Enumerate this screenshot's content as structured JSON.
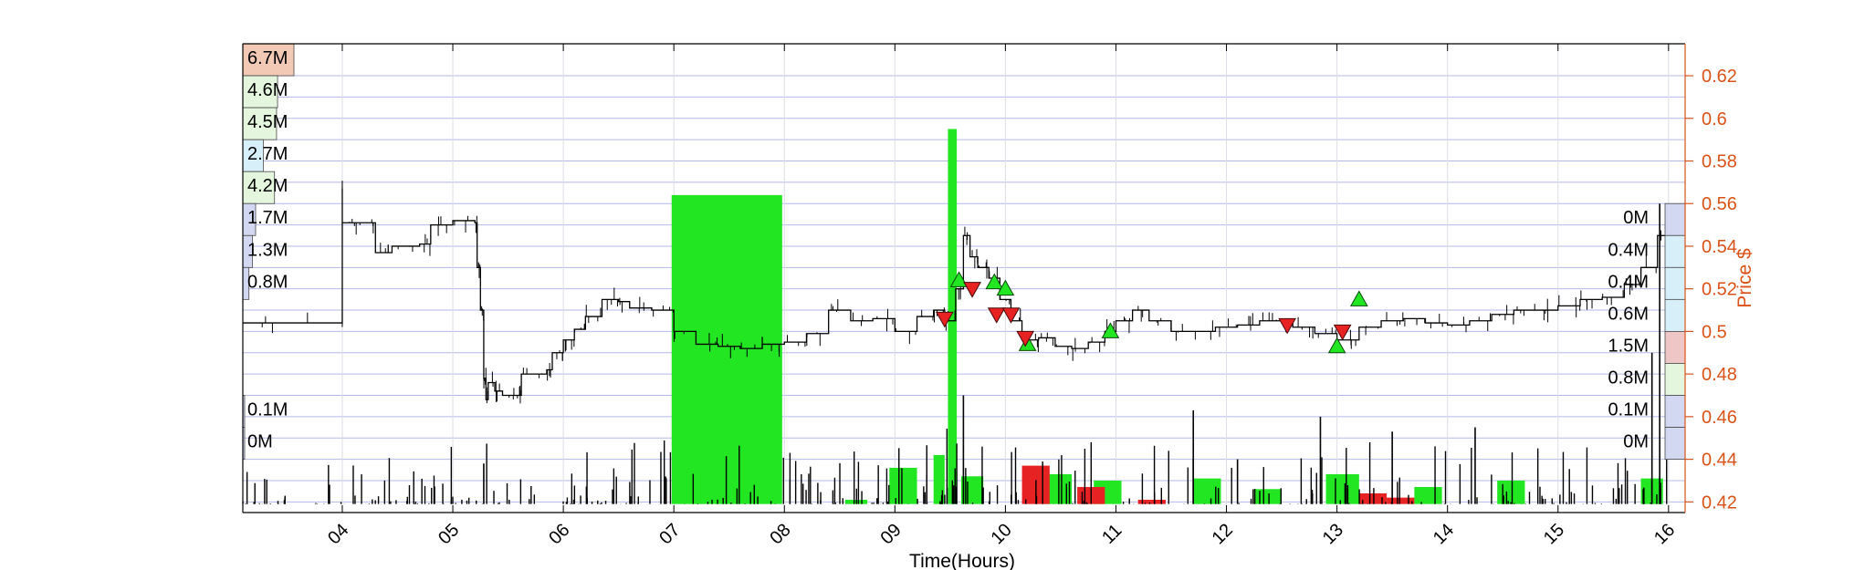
{
  "chart_data": {
    "type": "line",
    "xlabel": "Time(Hours)",
    "ylabel_right": "Price $",
    "x_range": [
      3.1,
      16.15
    ],
    "x_ticks": [
      "04",
      "05",
      "06",
      "07",
      "08",
      "09",
      "10",
      "11",
      "12",
      "13",
      "14",
      "15",
      "16"
    ],
    "x_tick_values": [
      4,
      5,
      6,
      7,
      8,
      9,
      10,
      11,
      12,
      13,
      14,
      15,
      16
    ],
    "ylim_right": [
      0.415,
      0.635
    ],
    "y_ticks_right": [
      0.42,
      0.44,
      0.46,
      0.48,
      0.5,
      0.52,
      0.54,
      0.56,
      0.58,
      0.6,
      0.62
    ],
    "y_tick_labels_right": [
      "0.42",
      "0.44",
      "0.46",
      "0.48",
      "0.5",
      "0.52",
      "0.54",
      "0.56",
      "0.58",
      "0.6",
      "0.62"
    ],
    "grid": true,
    "colors": {
      "price": "#000000",
      "buy": "#22e622",
      "sell": "#e62222",
      "axis_right": "#d95319",
      "grid": "#b4b8e6",
      "left_profile": "#dde8f7"
    },
    "price": [
      [
        3.1,
        0.504
      ],
      [
        4.0,
        0.504
      ],
      [
        4.0,
        0.567
      ],
      [
        4.0,
        0.551
      ],
      [
        4.15,
        0.551
      ],
      [
        4.3,
        0.537
      ],
      [
        4.45,
        0.54
      ],
      [
        4.7,
        0.541
      ],
      [
        4.8,
        0.55
      ],
      [
        5.0,
        0.552
      ],
      [
        5.2,
        0.551
      ],
      [
        5.22,
        0.53
      ],
      [
        5.25,
        0.51
      ],
      [
        5.28,
        0.478
      ],
      [
        5.3,
        0.468
      ],
      [
        5.32,
        0.476
      ],
      [
        5.38,
        0.472
      ],
      [
        5.45,
        0.47
      ],
      [
        5.6,
        0.47
      ],
      [
        5.62,
        0.48
      ],
      [
        5.85,
        0.482
      ],
      [
        5.9,
        0.49
      ],
      [
        6.0,
        0.496
      ],
      [
        6.1,
        0.501
      ],
      [
        6.2,
        0.507
      ],
      [
        6.35,
        0.515
      ],
      [
        6.5,
        0.514
      ],
      [
        6.6,
        0.511
      ],
      [
        6.8,
        0.51
      ],
      [
        7.0,
        0.5
      ],
      [
        7.2,
        0.494
      ],
      [
        7.4,
        0.493
      ],
      [
        7.6,
        0.492
      ],
      [
        7.8,
        0.494
      ],
      [
        8.0,
        0.495
      ],
      [
        8.2,
        0.499
      ],
      [
        8.4,
        0.51
      ],
      [
        8.6,
        0.505
      ],
      [
        8.8,
        0.506
      ],
      [
        9.0,
        0.5
      ],
      [
        9.2,
        0.507
      ],
      [
        9.35,
        0.51
      ],
      [
        9.45,
        0.505
      ],
      [
        9.55,
        0.52
      ],
      [
        9.62,
        0.545
      ],
      [
        9.68,
        0.535
      ],
      [
        9.75,
        0.53
      ],
      [
        9.85,
        0.525
      ],
      [
        9.95,
        0.515
      ],
      [
        10.05,
        0.505
      ],
      [
        10.15,
        0.496
      ],
      [
        10.3,
        0.497
      ],
      [
        10.45,
        0.493
      ],
      [
        10.6,
        0.492
      ],
      [
        10.75,
        0.495
      ],
      [
        10.9,
        0.5
      ],
      [
        11.0,
        0.505
      ],
      [
        11.15,
        0.51
      ],
      [
        11.3,
        0.505
      ],
      [
        11.5,
        0.5
      ],
      [
        11.7,
        0.5
      ],
      [
        11.9,
        0.502
      ],
      [
        12.1,
        0.503
      ],
      [
        12.3,
        0.505
      ],
      [
        12.5,
        0.504
      ],
      [
        12.6,
        0.502
      ],
      [
        12.8,
        0.499
      ],
      [
        13.0,
        0.496
      ],
      [
        13.2,
        0.502
      ],
      [
        13.4,
        0.505
      ],
      [
        13.6,
        0.506
      ],
      [
        13.8,
        0.504
      ],
      [
        14.0,
        0.503
      ],
      [
        14.2,
        0.505
      ],
      [
        14.4,
        0.508
      ],
      [
        14.6,
        0.51
      ],
      [
        14.8,
        0.51
      ],
      [
        15.0,
        0.512
      ],
      [
        15.2,
        0.515
      ],
      [
        15.4,
        0.516
      ],
      [
        15.6,
        0.522
      ],
      [
        15.75,
        0.53
      ],
      [
        15.9,
        0.545
      ],
      [
        16.0,
        0.56
      ]
    ],
    "buy_bars": [
      {
        "x0": 6.98,
        "x1": 7.98,
        "h": 0.564
      },
      {
        "x0": 9.48,
        "x1": 9.56,
        "h": 0.595
      },
      {
        "x0": 8.95,
        "x1": 9.2,
        "h": 0.436
      },
      {
        "x0": 9.35,
        "x1": 9.45,
        "h": 0.442
      },
      {
        "x0": 9.6,
        "x1": 9.8,
        "h": 0.432
      },
      {
        "x0": 10.35,
        "x1": 10.6,
        "h": 0.433
      },
      {
        "x0": 10.8,
        "x1": 11.05,
        "h": 0.43
      },
      {
        "x0": 11.7,
        "x1": 11.95,
        "h": 0.431
      },
      {
        "x0": 12.25,
        "x1": 12.5,
        "h": 0.426
      },
      {
        "x0": 12.9,
        "x1": 13.2,
        "h": 0.433
      },
      {
        "x0": 13.7,
        "x1": 13.95,
        "h": 0.427
      },
      {
        "x0": 14.45,
        "x1": 14.7,
        "h": 0.43
      },
      {
        "x0": 15.75,
        "x1": 15.95,
        "h": 0.431
      },
      {
        "x0": 8.55,
        "x1": 8.75,
        "h": 0.421
      }
    ],
    "sell_bars": [
      {
        "x0": 10.15,
        "x1": 10.4,
        "h": 0.437
      },
      {
        "x0": 10.65,
        "x1": 10.9,
        "h": 0.427
      },
      {
        "x0": 13.2,
        "x1": 13.45,
        "h": 0.424
      },
      {
        "x0": 13.45,
        "x1": 13.7,
        "h": 0.422
      },
      {
        "x0": 11.2,
        "x1": 11.45,
        "h": 0.421
      }
    ],
    "buy_markers": [
      [
        9.58,
        0.524
      ],
      [
        9.9,
        0.523
      ],
      [
        10.0,
        0.52
      ],
      [
        10.2,
        0.494
      ],
      [
        10.95,
        0.5
      ],
      [
        13.0,
        0.493
      ],
      [
        13.2,
        0.515
      ]
    ],
    "sell_markers": [
      [
        9.45,
        0.506
      ],
      [
        9.7,
        0.52
      ],
      [
        9.92,
        0.508
      ],
      [
        10.05,
        0.508
      ],
      [
        10.18,
        0.497
      ],
      [
        12.55,
        0.503
      ],
      [
        13.05,
        0.5
      ]
    ],
    "left_profile": [
      {
        "label": "6.7M",
        "y": 0.635,
        "w": 1.0,
        "color": "#f2c9b5"
      },
      {
        "label": "4.6M",
        "y": 0.62,
        "w": 0.68,
        "color": "#e4f6dd"
      },
      {
        "label": "4.5M",
        "y": 0.605,
        "w": 0.66,
        "color": "#e4f6dd"
      },
      {
        "label": "2.7M",
        "y": 0.59,
        "w": 0.4,
        "color": "#d6eff8"
      },
      {
        "label": "4.2M",
        "y": 0.575,
        "w": 0.62,
        "color": "#e4f6dd"
      },
      {
        "label": "1.7M",
        "y": 0.56,
        "w": 0.25,
        "color": "#d2d8f2"
      },
      {
        "label": "1.3M",
        "y": 0.545,
        "w": 0.19,
        "color": "#d2d8f2"
      },
      {
        "label": "0.8M",
        "y": 0.53,
        "w": 0.12,
        "color": "#d2d8f2"
      },
      {
        "label": "0.1M",
        "y": 0.47,
        "w": 0.015,
        "color": "#d2d8f2"
      },
      {
        "label": "0M",
        "y": 0.455,
        "w": 0.0,
        "color": "#d2d8f2"
      }
    ],
    "right_profile": [
      {
        "label": "0M",
        "y": 0.56,
        "w": 1.0,
        "color": "#d2d8f2"
      },
      {
        "label": "0.4M",
        "y": 0.545,
        "w": 1.0,
        "color": "#d6eff8"
      },
      {
        "label": "0.4M",
        "y": 0.53,
        "w": 1.0,
        "color": "#d6eff8"
      },
      {
        "label": "0.6M",
        "y": 0.515,
        "w": 1.0,
        "color": "#d6eff8"
      },
      {
        "label": "1.5M",
        "y": 0.5,
        "w": 1.0,
        "color": "#efc6c6"
      },
      {
        "label": "0.8M",
        "y": 0.485,
        "w": 1.0,
        "color": "#e4f6dd"
      },
      {
        "label": "0.1M",
        "y": 0.47,
        "w": 1.0,
        "color": "#d2d8f2"
      },
      {
        "label": "0M",
        "y": 0.455,
        "w": 1.0,
        "color": "#d2d8f2"
      }
    ]
  }
}
